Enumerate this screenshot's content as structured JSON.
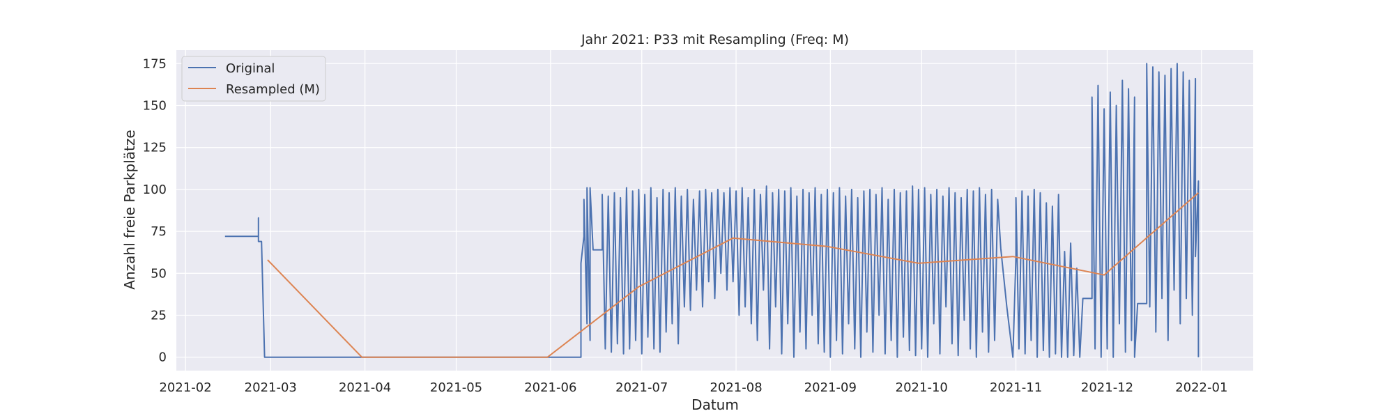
{
  "chart_data": {
    "type": "line",
    "title": "Jahr 2021: P33 mit Resampling (Freq: M)",
    "xlabel": "Datum",
    "ylabel": "Anzahl freie Parkplätze",
    "x_ticks": [
      "2021-02",
      "2021-03",
      "2021-04",
      "2021-05",
      "2021-06",
      "2021-07",
      "2021-08",
      "2021-09",
      "2021-10",
      "2021-11",
      "2021-12",
      "2022-01"
    ],
    "y_ticks": [
      "0",
      "25",
      "50",
      "75",
      "100",
      "125",
      "150",
      "175"
    ],
    "xlim": [
      "2021-01-29",
      "2022-01-18"
    ],
    "ylim": [
      -8,
      183
    ],
    "grid": true,
    "legend_position": "top-left",
    "colors": {
      "background": "#eaeaf2",
      "grid": "#ffffff",
      "original": "#4c72b0",
      "resampled": "#dd8452",
      "text": "#262626"
    },
    "series": [
      {
        "name": "Original",
        "color": "#4c72b0",
        "note_pattern": "dense oscillation",
        "points": [
          [
            "2021-02-14",
            72
          ],
          [
            "2021-02-25",
            72
          ],
          [
            "2021-02-25",
            83
          ],
          [
            "2021-02-25",
            69
          ],
          [
            "2021-02-26",
            69
          ],
          [
            "2021-02-27",
            0
          ],
          [
            "2021-06-11",
            0
          ],
          [
            "2021-06-11",
            56
          ],
          [
            "2021-06-12",
            72
          ],
          [
            "2021-06-12",
            94
          ],
          [
            "2021-06-13",
            20
          ],
          [
            "2021-06-13",
            101
          ],
          [
            "2021-06-14",
            10
          ],
          [
            "2021-06-14",
            101
          ],
          [
            "2021-06-15",
            64
          ],
          [
            "2021-06-18",
            64
          ],
          [
            "2021-06-18",
            97
          ],
          [
            "2021-06-19",
            5
          ],
          [
            "2021-06-20",
            96
          ],
          [
            "2021-06-21",
            3
          ],
          [
            "2021-06-22",
            98
          ],
          [
            "2021-06-23",
            8
          ],
          [
            "2021-06-24",
            95
          ],
          [
            "2021-06-25",
            2
          ],
          [
            "2021-06-26",
            101
          ],
          [
            "2021-06-27",
            5
          ],
          [
            "2021-06-28",
            99
          ],
          [
            "2021-06-29",
            10
          ],
          [
            "2021-06-30",
            100
          ],
          [
            "2021-07-01",
            2
          ],
          [
            "2021-07-02",
            97
          ],
          [
            "2021-07-03",
            12
          ],
          [
            "2021-07-04",
            101
          ],
          [
            "2021-07-05",
            5
          ],
          [
            "2021-07-06",
            95
          ],
          [
            "2021-07-07",
            3
          ],
          [
            "2021-07-08",
            100
          ],
          [
            "2021-07-09",
            15
          ],
          [
            "2021-07-10",
            98
          ],
          [
            "2021-07-11",
            20
          ],
          [
            "2021-07-12",
            101
          ],
          [
            "2021-07-13",
            8
          ],
          [
            "2021-07-14",
            96
          ],
          [
            "2021-07-15",
            30
          ],
          [
            "2021-07-16",
            100
          ],
          [
            "2021-07-17",
            28
          ],
          [
            "2021-07-18",
            94
          ],
          [
            "2021-07-19",
            40
          ],
          [
            "2021-07-20",
            99
          ],
          [
            "2021-07-21",
            30
          ],
          [
            "2021-07-22",
            100
          ],
          [
            "2021-07-23",
            45
          ],
          [
            "2021-07-24",
            98
          ],
          [
            "2021-07-25",
            35
          ],
          [
            "2021-07-26",
            100
          ],
          [
            "2021-07-27",
            50
          ],
          [
            "2021-07-28",
            98
          ],
          [
            "2021-07-29",
            40
          ],
          [
            "2021-07-30",
            101
          ],
          [
            "2021-07-31",
            45
          ],
          [
            "2021-08-01",
            99
          ],
          [
            "2021-08-02",
            25
          ],
          [
            "2021-08-03",
            101
          ],
          [
            "2021-08-04",
            30
          ],
          [
            "2021-08-05",
            95
          ],
          [
            "2021-08-06",
            20
          ],
          [
            "2021-08-07",
            100
          ],
          [
            "2021-08-08",
            10
          ],
          [
            "2021-08-09",
            97
          ],
          [
            "2021-08-10",
            40
          ],
          [
            "2021-08-11",
            102
          ],
          [
            "2021-08-12",
            5
          ],
          [
            "2021-08-13",
            98
          ],
          [
            "2021-08-14",
            30
          ],
          [
            "2021-08-15",
            100
          ],
          [
            "2021-08-16",
            2
          ],
          [
            "2021-08-17",
            99
          ],
          [
            "2021-08-18",
            20
          ],
          [
            "2021-08-19",
            101
          ],
          [
            "2021-08-20",
            0
          ],
          [
            "2021-08-21",
            96
          ],
          [
            "2021-08-22",
            15
          ],
          [
            "2021-08-23",
            100
          ],
          [
            "2021-08-24",
            5
          ],
          [
            "2021-08-25",
            98
          ],
          [
            "2021-08-26",
            25
          ],
          [
            "2021-08-27",
            101
          ],
          [
            "2021-08-28",
            8
          ],
          [
            "2021-08-29",
            97
          ],
          [
            "2021-08-30",
            3
          ],
          [
            "2021-08-31",
            100
          ],
          [
            "2021-09-01",
            0
          ],
          [
            "2021-09-02",
            98
          ],
          [
            "2021-09-03",
            10
          ],
          [
            "2021-09-04",
            101
          ],
          [
            "2021-09-05",
            2
          ],
          [
            "2021-09-06",
            96
          ],
          [
            "2021-09-07",
            20
          ],
          [
            "2021-09-08",
            100
          ],
          [
            "2021-09-09",
            5
          ],
          [
            "2021-09-10",
            95
          ],
          [
            "2021-09-11",
            0
          ],
          [
            "2021-09-12",
            99
          ],
          [
            "2021-09-13",
            15
          ],
          [
            "2021-09-14",
            100
          ],
          [
            "2021-09-15",
            3
          ],
          [
            "2021-09-16",
            97
          ],
          [
            "2021-09-17",
            25
          ],
          [
            "2021-09-18",
            101
          ],
          [
            "2021-09-19",
            2
          ],
          [
            "2021-09-20",
            94
          ],
          [
            "2021-09-21",
            10
          ],
          [
            "2021-09-22",
            100
          ],
          [
            "2021-09-23",
            0
          ],
          [
            "2021-09-24",
            98
          ],
          [
            "2021-09-25",
            12
          ],
          [
            "2021-09-26",
            99
          ],
          [
            "2021-09-27",
            4
          ],
          [
            "2021-09-28",
            102
          ],
          [
            "2021-09-29",
            1
          ],
          [
            "2021-09-30",
            100
          ],
          [
            "2021-10-01",
            5
          ],
          [
            "2021-10-02",
            101
          ],
          [
            "2021-10-03",
            0
          ],
          [
            "2021-10-04",
            97
          ],
          [
            "2021-10-05",
            20
          ],
          [
            "2021-10-06",
            100
          ],
          [
            "2021-10-07",
            2
          ],
          [
            "2021-10-08",
            96
          ],
          [
            "2021-10-09",
            30
          ],
          [
            "2021-10-10",
            101
          ],
          [
            "2021-10-11",
            8
          ],
          [
            "2021-10-12",
            98
          ],
          [
            "2021-10-13",
            1
          ],
          [
            "2021-10-14",
            95
          ],
          [
            "2021-10-15",
            22
          ],
          [
            "2021-10-16",
            100
          ],
          [
            "2021-10-17",
            5
          ],
          [
            "2021-10-18",
            99
          ],
          [
            "2021-10-19",
            0
          ],
          [
            "2021-10-20",
            101
          ],
          [
            "2021-10-21",
            15
          ],
          [
            "2021-10-22",
            97
          ],
          [
            "2021-10-23",
            3
          ],
          [
            "2021-10-24",
            100
          ],
          [
            "2021-10-25",
            10
          ],
          [
            "2021-10-26",
            94
          ],
          [
            "2021-10-27",
            65
          ],
          [
            "2021-10-29",
            30
          ],
          [
            "2021-10-31",
            0
          ],
          [
            "2021-11-01",
            60
          ],
          [
            "2021-11-01",
            95
          ],
          [
            "2021-11-02",
            5
          ],
          [
            "2021-11-03",
            99
          ],
          [
            "2021-11-04",
            2
          ],
          [
            "2021-11-05",
            96
          ],
          [
            "2021-11-06",
            10
          ],
          [
            "2021-11-07",
            100
          ],
          [
            "2021-11-08",
            0
          ],
          [
            "2021-11-09",
            98
          ],
          [
            "2021-11-10",
            4
          ],
          [
            "2021-11-11",
            92
          ],
          [
            "2021-11-12",
            0
          ],
          [
            "2021-11-13",
            90
          ],
          [
            "2021-11-14",
            2
          ],
          [
            "2021-11-15",
            97
          ],
          [
            "2021-11-16",
            0
          ],
          [
            "2021-11-17",
            63
          ],
          [
            "2021-11-18",
            0
          ],
          [
            "2021-11-19",
            68
          ],
          [
            "2021-11-20",
            1
          ],
          [
            "2021-11-21",
            53
          ],
          [
            "2021-11-22",
            0
          ],
          [
            "2021-11-23",
            35
          ],
          [
            "2021-11-26",
            35
          ],
          [
            "2021-11-26",
            155
          ],
          [
            "2021-11-27",
            5
          ],
          [
            "2021-11-28",
            162
          ],
          [
            "2021-11-29",
            0
          ],
          [
            "2021-11-30",
            148
          ],
          [
            "2021-12-01",
            5
          ],
          [
            "2021-12-02",
            158
          ],
          [
            "2021-12-03",
            0
          ],
          [
            "2021-12-04",
            150
          ],
          [
            "2021-12-05",
            20
          ],
          [
            "2021-12-06",
            165
          ],
          [
            "2021-12-07",
            3
          ],
          [
            "2021-12-08",
            160
          ],
          [
            "2021-12-09",
            10
          ],
          [
            "2021-12-10",
            155
          ],
          [
            "2021-12-10",
            0
          ],
          [
            "2021-12-11",
            32
          ],
          [
            "2021-12-14",
            32
          ],
          [
            "2021-12-14",
            175
          ],
          [
            "2021-12-15",
            30
          ],
          [
            "2021-12-16",
            173
          ],
          [
            "2021-12-17",
            15
          ],
          [
            "2021-12-18",
            170
          ],
          [
            "2021-12-19",
            35
          ],
          [
            "2021-12-20",
            168
          ],
          [
            "2021-12-21",
            10
          ],
          [
            "2021-12-22",
            172
          ],
          [
            "2021-12-23",
            40
          ],
          [
            "2021-12-24",
            175
          ],
          [
            "2021-12-25",
            20
          ],
          [
            "2021-12-26",
            170
          ],
          [
            "2021-12-27",
            35
          ],
          [
            "2021-12-28",
            165
          ],
          [
            "2021-12-29",
            25
          ],
          [
            "2021-12-30",
            166
          ],
          [
            "2021-12-30",
            60
          ],
          [
            "2021-12-31",
            105
          ],
          [
            "2021-12-31",
            0
          ]
        ]
      },
      {
        "name": "Resampled (M)",
        "color": "#dd8452",
        "points": [
          [
            "2021-02-28",
            58
          ],
          [
            "2021-03-31",
            0
          ],
          [
            "2021-04-30",
            0
          ],
          [
            "2021-05-31",
            0
          ],
          [
            "2021-06-30",
            42
          ],
          [
            "2021-07-31",
            71
          ],
          [
            "2021-08-31",
            66
          ],
          [
            "2021-09-30",
            56
          ],
          [
            "2021-10-31",
            60
          ],
          [
            "2021-11-30",
            49
          ],
          [
            "2021-12-31",
            98
          ]
        ]
      }
    ]
  }
}
